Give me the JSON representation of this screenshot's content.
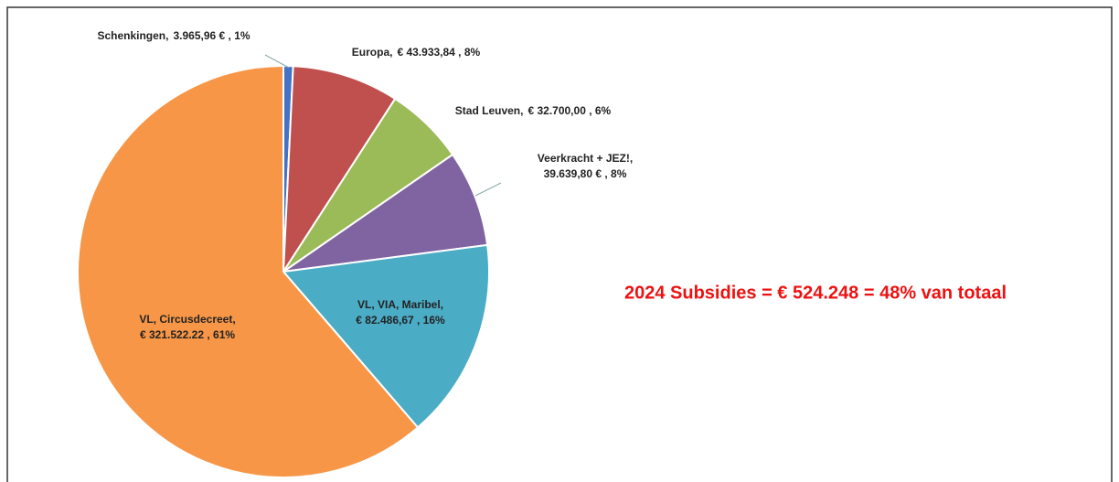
{
  "chart_data": {
    "type": "pie",
    "categories": [
      "Schenkingen,",
      "Europa,",
      "Stad Leuven,",
      "Veerkracht + JEZ!,",
      "VL, VIA, Maribel,",
      "VL, Circusdecreet,"
    ],
    "values": [
      3965.96,
      43933.84,
      32700.0,
      39639.8,
      82486.67,
      321522.22
    ],
    "value_labels": [
      "3.965,96 € , 1%",
      "€ 43.933,84 , 8%",
      "€ 32.700,00 , 6%",
      "39.639,80 € , 8%",
      "€ 82.486,67 , 16%",
      "€ 321.522.22 , 61%"
    ],
    "colors": [
      "#4472c4",
      "#c0504d",
      "#9bbb59",
      "#8064a2",
      "#4bacc6",
      "#f79646"
    ],
    "annotation": "2024 Subsidies = € 524.248 = 48% van totaal"
  }
}
